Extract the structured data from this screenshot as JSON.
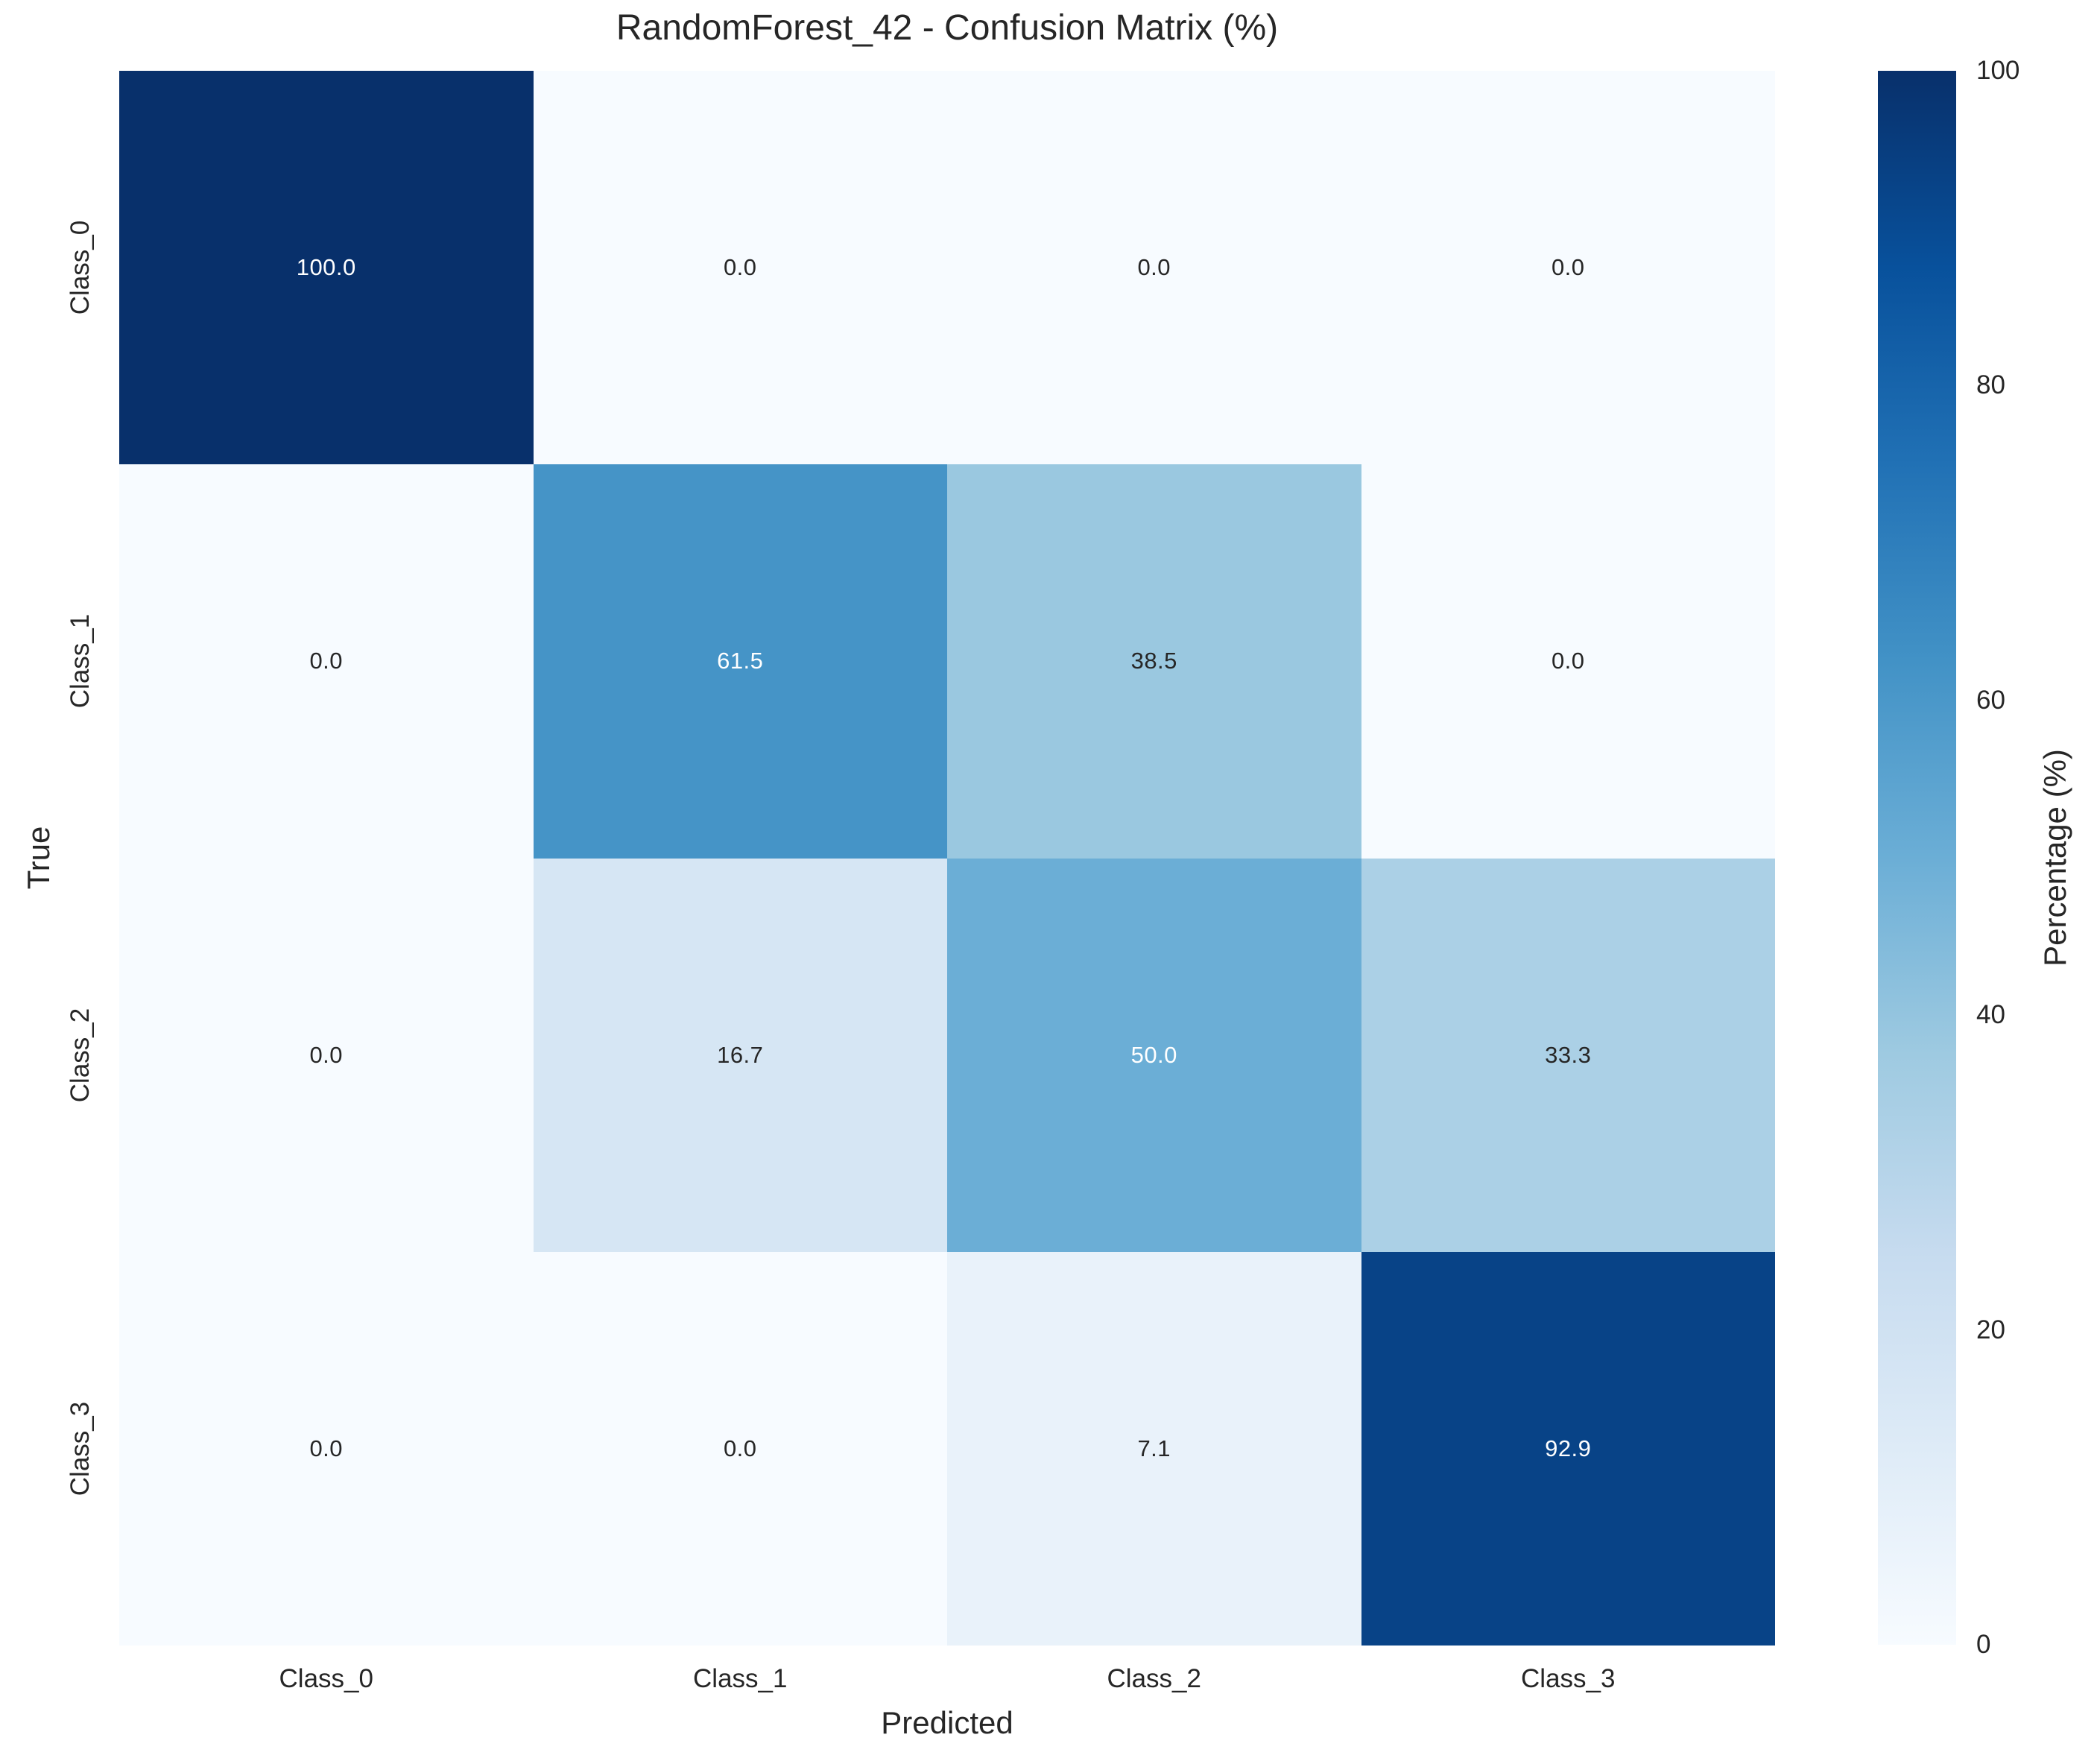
{
  "chart_data": {
    "type": "heatmap",
    "title": "RandomForest_42 - Confusion Matrix (%)",
    "xlabel": "Predicted",
    "ylabel": "True",
    "x_categories": [
      "Class_0",
      "Class_1",
      "Class_2",
      "Class_3"
    ],
    "y_categories": [
      "Class_0",
      "Class_1",
      "Class_2",
      "Class_3"
    ],
    "values": [
      [
        100.0,
        0.0,
        0.0,
        0.0
      ],
      [
        0.0,
        61.5,
        38.5,
        0.0
      ],
      [
        0.0,
        16.7,
        50.0,
        33.3
      ],
      [
        0.0,
        0.0,
        7.1,
        92.9
      ]
    ],
    "value_decimals": 1,
    "vmin": 0,
    "vmax": 100,
    "colormap": "Blues",
    "grid": false,
    "legend_position": "right-colorbar"
  },
  "colorbar": {
    "label": "Percentage (%)",
    "ticks": [
      0,
      20,
      40,
      60,
      80,
      100
    ]
  },
  "colors": {
    "background": "#ffffff",
    "text": "#262626",
    "annotation_light": "#ffffff",
    "annotation_dark": "#262626",
    "cmap_min": "#f7fbff",
    "cmap_max": "#08306b",
    "blues_stops": [
      [
        247,
        251,
        255
      ],
      [
        222,
        235,
        247
      ],
      [
        198,
        219,
        239
      ],
      [
        158,
        202,
        225
      ],
      [
        107,
        174,
        214
      ],
      [
        66,
        146,
        198
      ],
      [
        33,
        113,
        181
      ],
      [
        8,
        81,
        156
      ],
      [
        8,
        48,
        107
      ]
    ]
  }
}
